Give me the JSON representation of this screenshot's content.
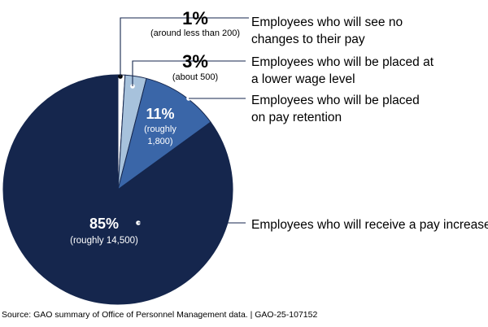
{
  "chart_data": {
    "type": "pie",
    "title": "",
    "slices": [
      {
        "pct_label": "1%",
        "value": 1,
        "sub": "(around less than 200)",
        "desc": [
          "Employees who will see no",
          "changes to their pay"
        ],
        "color": "#ffffff"
      },
      {
        "pct_label": "3%",
        "value": 3,
        "sub": "(about 500)",
        "desc": [
          "Employees who will be placed at",
          "a lower wage level"
        ],
        "color": "#a7c2dc"
      },
      {
        "pct_label": "11%",
        "value": 11,
        "sub": [
          "(roughly",
          "1,800)"
        ],
        "desc": [
          "Employees who will be placed",
          "on pay retention"
        ],
        "color": "#3a66a8"
      },
      {
        "pct_label": "85%",
        "value": 85,
        "sub": "(roughly 14,500)",
        "desc": [
          "Employees who will receive a pay increase"
        ],
        "color": "#15264d"
      }
    ]
  },
  "source_note": "Source: GAO summary of Office of Personnel Management data.  |  GAO-25-107152"
}
